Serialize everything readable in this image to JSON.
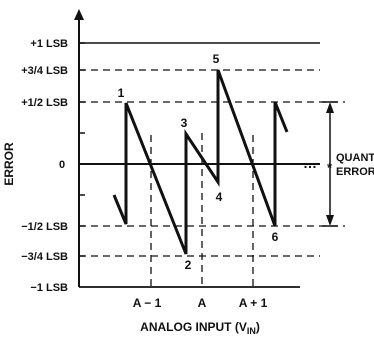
{
  "figure": {
    "y_axis_title": "ERROR",
    "x_axis_title": "ANALOG INPUT (V",
    "x_axis_title_sub": "IN",
    "x_axis_title_close": ")",
    "y_tick_labels": {
      "plus_1": "+1 LSB",
      "plus_3_4": "+3/4 LSB",
      "plus_1_2": "+1/2 LSB",
      "zero": "0",
      "minus_1_2": "−1/2 LSB",
      "minus_3_4": "−3/4 LSB",
      "minus_1": "−1 LSB"
    },
    "x_tick_labels": {
      "a_minus_1": "A − 1",
      "a": "A",
      "a_plus_1": "A + 1"
    },
    "point_labels": [
      "1",
      "2",
      "3",
      "4",
      "5",
      "6"
    ],
    "ellipsis": "…",
    "annotation_line1": "QUANTIZATION",
    "annotation_line2": "ERROR",
    "annotation_asterisk": "*"
  }
}
